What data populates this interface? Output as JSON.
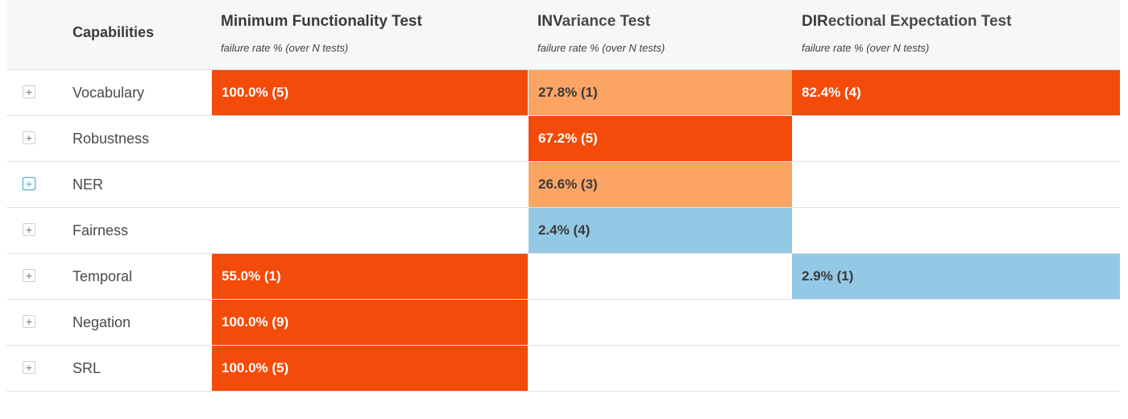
{
  "header": {
    "capabilities_label": "Capabilities",
    "columns": [
      {
        "acronym": "M",
        "rest": "inimum Functionality Test",
        "title": "Minimum Functionality Test",
        "subtitle": "failure rate % (over N tests)"
      },
      {
        "acronym": "INV",
        "rest": "ariance Test",
        "title": "INVariance Test",
        "subtitle": "failure rate % (over N tests)"
      },
      {
        "acronym": "DIR",
        "rest": "ectional Expectation Test",
        "title": "DIRectional Expectation Test",
        "subtitle": "failure rate % (over N tests)"
      }
    ]
  },
  "colors": {
    "high": "#f44a0a",
    "mid": "#fca464",
    "low": "#94c9e6",
    "header_bg": "#f7f7f8"
  },
  "expand_icon": "plus-icon",
  "rows": [
    {
      "capability": "Vocabulary",
      "expander": "+",
      "mft": {
        "text": "100.0% (5)",
        "rate": 100.0,
        "n": 5,
        "level": "high"
      },
      "inv": {
        "text": "27.8% (1)",
        "rate": 27.8,
        "n": 1,
        "level": "mid"
      },
      "dir": {
        "text": "82.4% (4)",
        "rate": 82.4,
        "n": 4,
        "level": "high"
      }
    },
    {
      "capability": "Robustness",
      "expander": "+",
      "mft": null,
      "inv": {
        "text": "67.2% (5)",
        "rate": 67.2,
        "n": 5,
        "level": "high"
      },
      "dir": null
    },
    {
      "capability": "NER",
      "expander": "+",
      "focused": true,
      "mft": null,
      "inv": {
        "text": "26.6% (3)",
        "rate": 26.6,
        "n": 3,
        "level": "mid"
      },
      "dir": null
    },
    {
      "capability": "Fairness",
      "expander": "+",
      "mft": null,
      "inv": {
        "text": "2.4% (4)",
        "rate": 2.4,
        "n": 4,
        "level": "low"
      },
      "dir": null
    },
    {
      "capability": "Temporal",
      "expander": "+",
      "mft": {
        "text": "55.0% (1)",
        "rate": 55.0,
        "n": 1,
        "level": "high"
      },
      "inv": null,
      "dir": {
        "text": "2.9% (1)",
        "rate": 2.9,
        "n": 1,
        "level": "low"
      }
    },
    {
      "capability": "Negation",
      "expander": "+",
      "mft": {
        "text": "100.0% (9)",
        "rate": 100.0,
        "n": 9,
        "level": "high"
      },
      "inv": null,
      "dir": null
    },
    {
      "capability": "SRL",
      "expander": "+",
      "mft": {
        "text": "100.0% (5)",
        "rate": 100.0,
        "n": 5,
        "level": "high"
      },
      "inv": null,
      "dir": null
    }
  ]
}
